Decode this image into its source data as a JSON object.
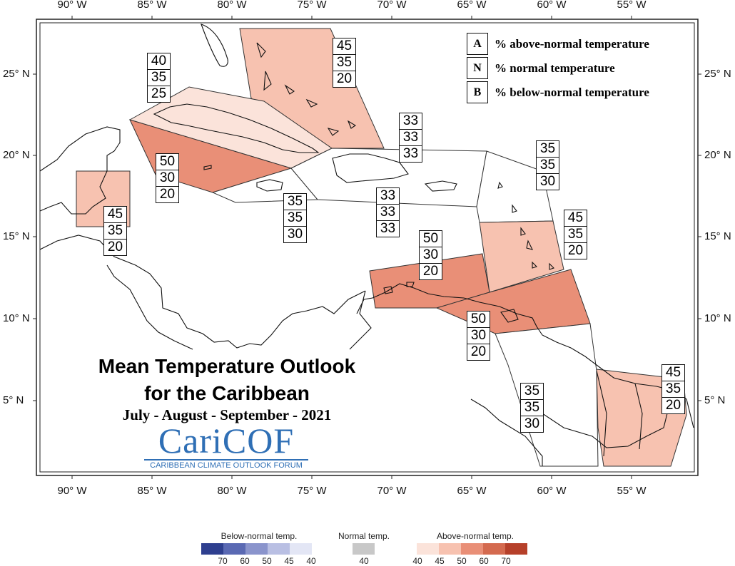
{
  "longitude_labels": [
    "90° W",
    "85° W",
    "80° W",
    "75° W",
    "70° W",
    "65° W",
    "60° W",
    "55° W"
  ],
  "latitude_labels": [
    "25° N",
    "20° N",
    "15° N",
    "10° N",
    "5° N"
  ],
  "legend_key": [
    {
      "letter": "A",
      "text": "% above-normal temperature"
    },
    {
      "letter": "N",
      "text": "% normal temperature"
    },
    {
      "letter": "B",
      "text": "% below-normal temperature"
    }
  ],
  "regions": [
    {
      "id": "bahamas",
      "values": [
        "45",
        "35",
        "20"
      ],
      "fill": "#f7c2b0"
    },
    {
      "id": "cuba",
      "values": [
        "40",
        "35",
        "25"
      ],
      "fill": "#fbe3da"
    },
    {
      "id": "cayman",
      "values": [
        "50",
        "30",
        "20"
      ],
      "fill": "#e98f77"
    },
    {
      "id": "belize",
      "values": [
        "45",
        "35",
        "20"
      ],
      "fill": "#f7c2b0"
    },
    {
      "id": "jamaica",
      "values": [
        "35",
        "35",
        "30"
      ],
      "fill": "#ffffff"
    },
    {
      "id": "turks",
      "values": [
        "33",
        "33",
        "33"
      ],
      "fill": "#ffffff"
    },
    {
      "id": "hispaniola",
      "values": [
        "33",
        "33",
        "33"
      ],
      "fill": "#ffffff"
    },
    {
      "id": "leeward",
      "values": [
        "35",
        "35",
        "30"
      ],
      "fill": "#ffffff"
    },
    {
      "id": "windward",
      "values": [
        "45",
        "35",
        "20"
      ],
      "fill": "#f7c2b0"
    },
    {
      "id": "abc",
      "values": [
        "50",
        "30",
        "20"
      ],
      "fill": "#e98f77"
    },
    {
      "id": "trinidad",
      "values": [
        "50",
        "30",
        "20"
      ],
      "fill": "#e98f77"
    },
    {
      "id": "guyana",
      "values": [
        "35",
        "35",
        "30"
      ],
      "fill": "#ffffff"
    },
    {
      "id": "suriname",
      "values": [
        "45",
        "35",
        "20"
      ],
      "fill": "#f7c2b0"
    }
  ],
  "title_line1": "Mean Temperature Outlook",
  "title_line2": "for the Caribbean",
  "subtitle": "July - August - September - 2021",
  "logo": {
    "main": "CariCOF",
    "sub": "CARIBBEAN CLIMATE OUTLOOK FORUM"
  },
  "colorbar": {
    "below": {
      "title": "Below-normal temp.",
      "ticks": [
        "70",
        "60",
        "50",
        "45",
        "40"
      ],
      "colors": [
        "#2e3f8f",
        "#5a69b3",
        "#8a94cc",
        "#b9bfe3",
        "#e3e6f5"
      ]
    },
    "normal": {
      "title": "Normal temp.",
      "ticks": [
        "40"
      ],
      "colors": [
        "#c8c8c8"
      ]
    },
    "above": {
      "title": "Above-normal temp.",
      "ticks": [
        "40",
        "45",
        "50",
        "60",
        "70"
      ],
      "colors": [
        "#fbe3da",
        "#f7c2b0",
        "#e98f77",
        "#d46a4f",
        "#b6402a"
      ]
    }
  }
}
